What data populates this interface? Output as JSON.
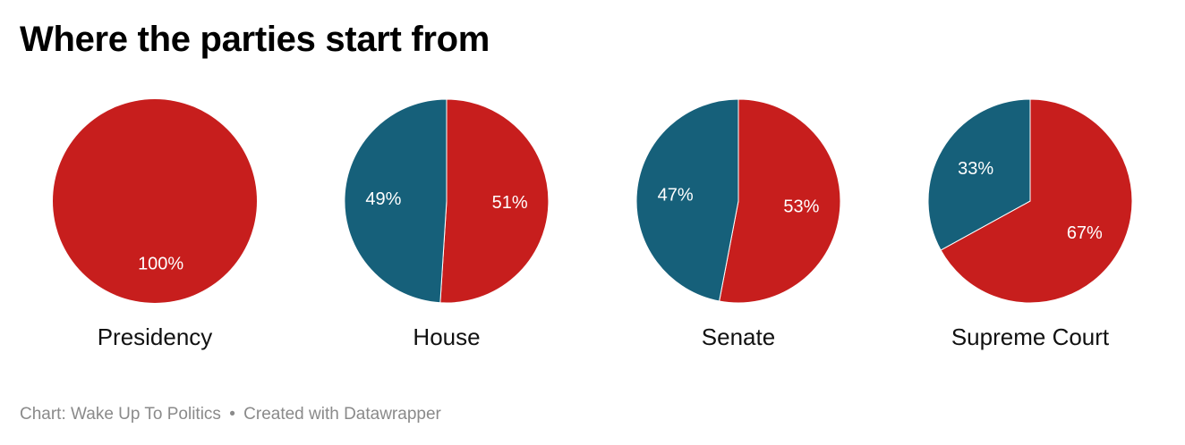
{
  "title": "Where the parties start from",
  "colors": {
    "democrat": "#16607a",
    "republican": "#c71e1d",
    "stroke": "#ffffff"
  },
  "chart_data": [
    {
      "type": "pie",
      "title": "Presidency",
      "slices": [
        {
          "party": "republican",
          "value": 100,
          "label": "100%"
        }
      ]
    },
    {
      "type": "pie",
      "title": "House",
      "slices": [
        {
          "party": "republican",
          "value": 51,
          "label": "51%"
        },
        {
          "party": "democrat",
          "value": 49,
          "label": "49%"
        }
      ]
    },
    {
      "type": "pie",
      "title": "Senate",
      "slices": [
        {
          "party": "republican",
          "value": 53,
          "label": "53%"
        },
        {
          "party": "democrat",
          "value": 47,
          "label": "47%"
        }
      ]
    },
    {
      "type": "pie",
      "title": "Supreme Court",
      "slices": [
        {
          "party": "republican",
          "value": 67,
          "label": "67%"
        },
        {
          "party": "democrat",
          "value": 33,
          "label": "33%"
        }
      ]
    }
  ],
  "footer": {
    "source": "Chart: Wake Up To Politics",
    "separator": "•",
    "credit": "Created with Datawrapper"
  }
}
